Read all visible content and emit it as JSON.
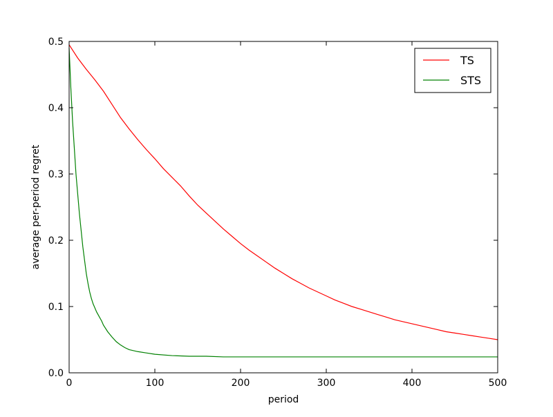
{
  "chart_data": {
    "type": "line",
    "xlabel": "period",
    "ylabel": "average per-period regret",
    "xlim": [
      0,
      500
    ],
    "ylim": [
      0,
      0.5
    ],
    "xticks": [
      0,
      100,
      200,
      300,
      400,
      500
    ],
    "yticks": [
      0.0,
      0.1,
      0.2,
      0.3,
      0.4,
      0.5
    ],
    "xtick_labels": [
      "0",
      "100",
      "200",
      "300",
      "400",
      "500"
    ],
    "ytick_labels": [
      "0.0",
      "0.1",
      "0.2",
      "0.3",
      "0.4",
      "0.5"
    ],
    "grid": false,
    "legend": {
      "placement": "top-right"
    },
    "series": [
      {
        "name": "TS",
        "color": "#ff0000",
        "x": [
          0,
          10,
          20,
          30,
          40,
          50,
          60,
          70,
          80,
          90,
          100,
          110,
          120,
          130,
          140,
          150,
          160,
          170,
          180,
          190,
          200,
          210,
          220,
          230,
          240,
          250,
          260,
          270,
          280,
          290,
          300,
          310,
          320,
          330,
          340,
          350,
          360,
          370,
          380,
          390,
          400,
          410,
          420,
          430,
          440,
          450,
          460,
          470,
          480,
          490,
          500
        ],
        "y": [
          0.495,
          0.475,
          0.458,
          0.442,
          0.425,
          0.405,
          0.385,
          0.368,
          0.352,
          0.337,
          0.323,
          0.308,
          0.295,
          0.282,
          0.267,
          0.253,
          0.241,
          0.229,
          0.217,
          0.206,
          0.195,
          0.185,
          0.176,
          0.167,
          0.158,
          0.15,
          0.142,
          0.135,
          0.128,
          0.122,
          0.116,
          0.11,
          0.105,
          0.1,
          0.096,
          0.092,
          0.088,
          0.084,
          0.08,
          0.077,
          0.074,
          0.071,
          0.068,
          0.065,
          0.062,
          0.06,
          0.058,
          0.056,
          0.054,
          0.052,
          0.05
        ]
      },
      {
        "name": "STS",
        "color": "#008000",
        "x": [
          0,
          2,
          4,
          6,
          8,
          10,
          12,
          14,
          16,
          18,
          20,
          22,
          24,
          26,
          28,
          30,
          32,
          35,
          38,
          40,
          45,
          50,
          55,
          60,
          65,
          70,
          80,
          90,
          100,
          120,
          140,
          160,
          180,
          200,
          250,
          300,
          350,
          400,
          450,
          500
        ],
        "y": [
          0.49,
          0.43,
          0.38,
          0.34,
          0.3,
          0.27,
          0.24,
          0.215,
          0.19,
          0.17,
          0.15,
          0.135,
          0.122,
          0.112,
          0.104,
          0.098,
          0.092,
          0.085,
          0.078,
          0.072,
          0.062,
          0.054,
          0.047,
          0.042,
          0.038,
          0.035,
          0.032,
          0.03,
          0.028,
          0.026,
          0.025,
          0.025,
          0.024,
          0.024,
          0.024,
          0.024,
          0.024,
          0.024,
          0.024,
          0.024
        ]
      }
    ]
  }
}
